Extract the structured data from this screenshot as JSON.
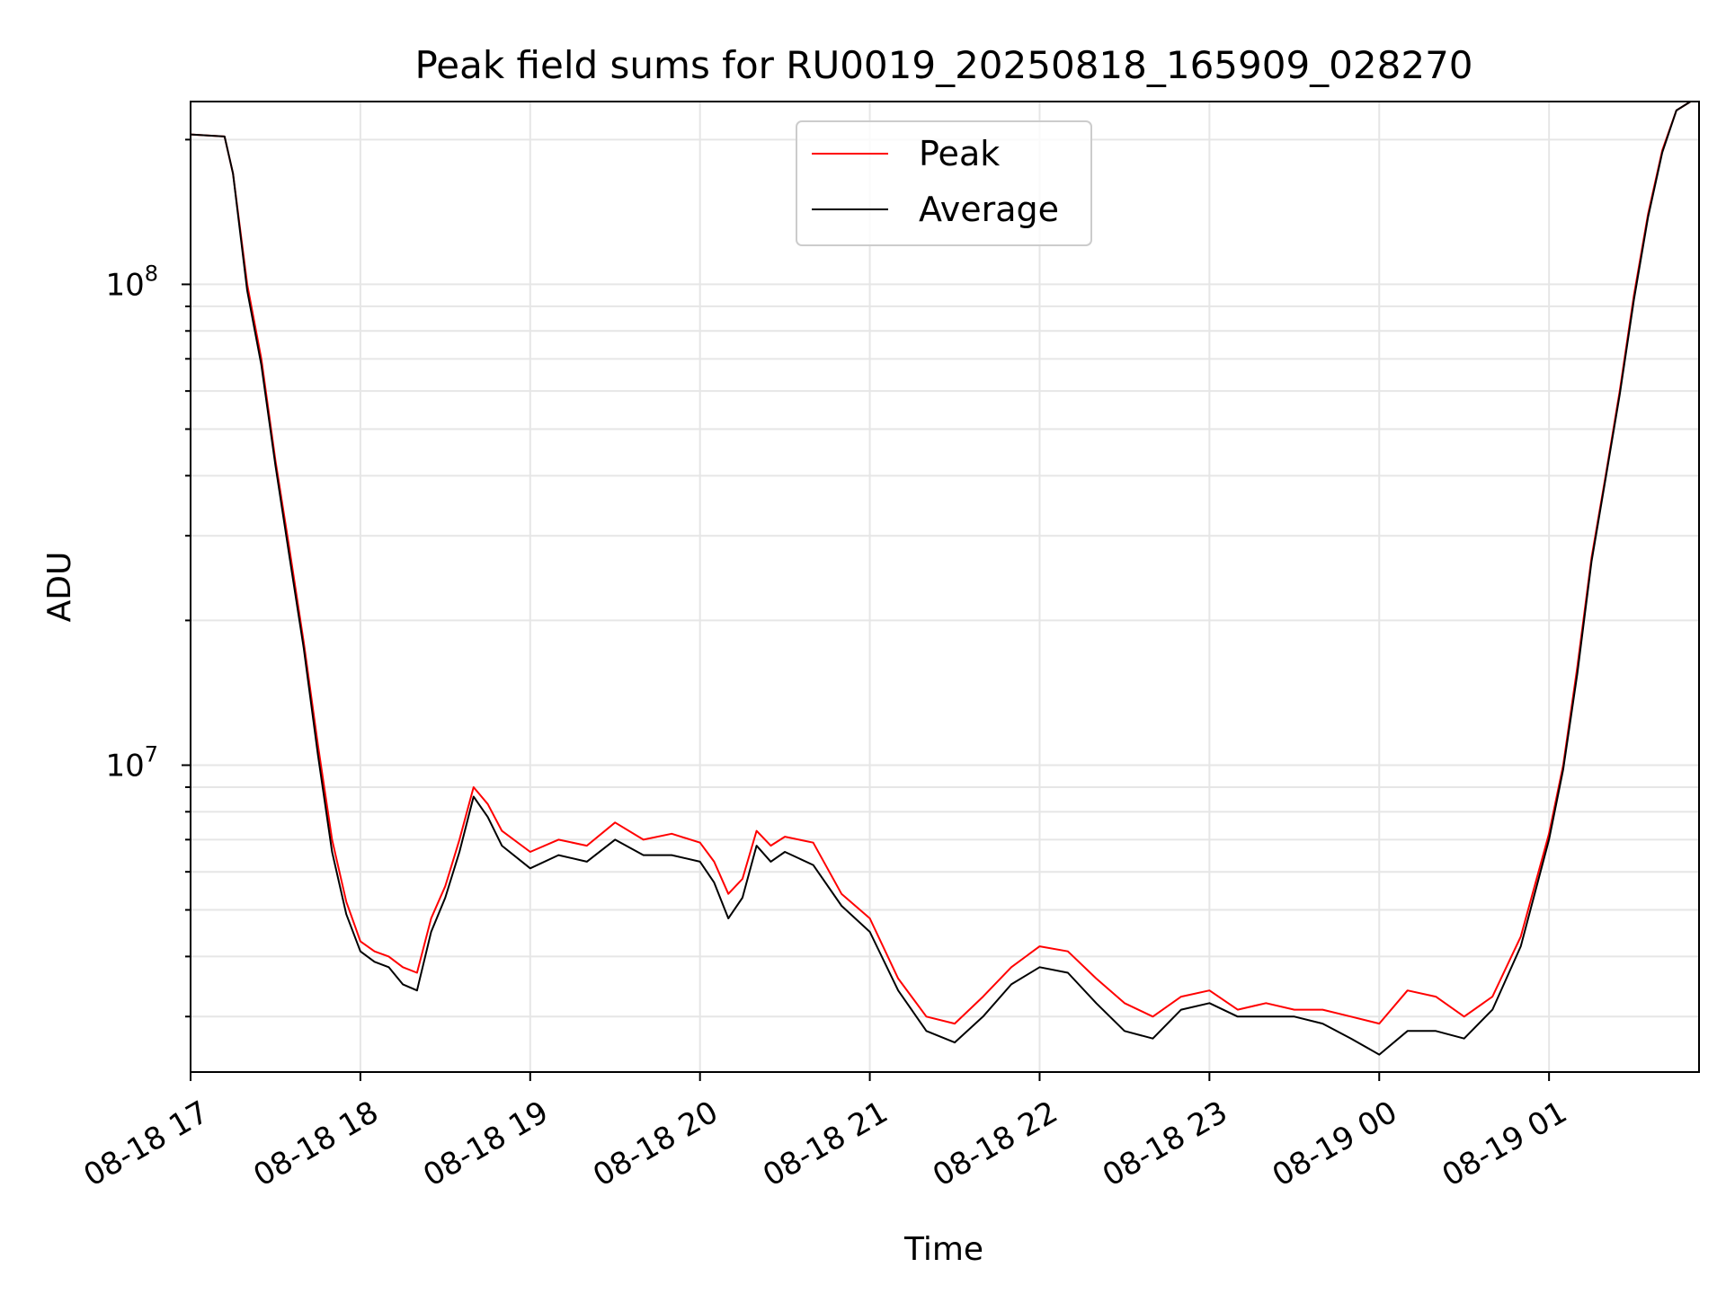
{
  "chart_data": {
    "type": "line",
    "title": "Peak field sums for RU0019_20250818_165909_028270",
    "xlabel": "Time",
    "ylabel": "ADU",
    "yscale": "log",
    "ylim": [
      2300000,
      240000000
    ],
    "xlim": [
      "2025-08-18 17:00",
      "2025-08-19 01:53"
    ],
    "x_ticks": [
      "08-18 17",
      "08-18 18",
      "08-18 19",
      "08-18 20",
      "08-18 21",
      "08-18 22",
      "08-18 23",
      "08-19 00",
      "08-19 01"
    ],
    "y_ticks": [
      {
        "base": "10",
        "exp": "7"
      },
      {
        "base": "10",
        "exp": "8"
      }
    ],
    "grid": true,
    "legend_position": "top-center",
    "x": [
      "2025-08-18 17:00",
      "2025-08-18 17:12",
      "2025-08-18 17:15",
      "2025-08-18 17:20",
      "2025-08-18 17:25",
      "2025-08-18 17:30",
      "2025-08-18 17:35",
      "2025-08-18 17:40",
      "2025-08-18 17:45",
      "2025-08-18 17:50",
      "2025-08-18 17:55",
      "2025-08-18 18:00",
      "2025-08-18 18:05",
      "2025-08-18 18:10",
      "2025-08-18 18:15",
      "2025-08-18 18:20",
      "2025-08-18 18:25",
      "2025-08-18 18:30",
      "2025-08-18 18:35",
      "2025-08-18 18:40",
      "2025-08-18 18:45",
      "2025-08-18 18:50",
      "2025-08-18 19:00",
      "2025-08-18 19:10",
      "2025-08-18 19:20",
      "2025-08-18 19:30",
      "2025-08-18 19:40",
      "2025-08-18 19:50",
      "2025-08-18 20:00",
      "2025-08-18 20:05",
      "2025-08-18 20:10",
      "2025-08-18 20:15",
      "2025-08-18 20:20",
      "2025-08-18 20:25",
      "2025-08-18 20:30",
      "2025-08-18 20:40",
      "2025-08-18 20:50",
      "2025-08-18 21:00",
      "2025-08-18 21:10",
      "2025-08-18 21:20",
      "2025-08-18 21:30",
      "2025-08-18 21:40",
      "2025-08-18 21:50",
      "2025-08-18 22:00",
      "2025-08-18 22:10",
      "2025-08-18 22:20",
      "2025-08-18 22:30",
      "2025-08-18 22:40",
      "2025-08-18 22:50",
      "2025-08-18 23:00",
      "2025-08-18 23:10",
      "2025-08-18 23:20",
      "2025-08-18 23:30",
      "2025-08-18 23:40",
      "2025-08-18 23:50",
      "2025-08-19 00:00",
      "2025-08-19 00:10",
      "2025-08-19 00:20",
      "2025-08-19 00:30",
      "2025-08-19 00:40",
      "2025-08-19 00:50",
      "2025-08-19 01:00",
      "2025-08-19 01:05",
      "2025-08-19 01:10",
      "2025-08-19 01:15",
      "2025-08-19 01:20",
      "2025-08-19 01:25",
      "2025-08-19 01:30",
      "2025-08-19 01:35",
      "2025-08-19 01:40",
      "2025-08-19 01:45",
      "2025-08-19 01:50",
      "2025-08-19 01:53"
    ],
    "series": [
      {
        "name": "Peak",
        "color": "#ff0000",
        "values": [
          205000000,
          203000000,
          170000000,
          100000000,
          70000000,
          43000000,
          28000000,
          18000000,
          11000000,
          7000000,
          5200000,
          4300000,
          4100000,
          4000000,
          3800000,
          3700000,
          4800000,
          5600000,
          7000000,
          9000000,
          8300000,
          7300000,
          6600000,
          7000000,
          6800000,
          7600000,
          7000000,
          7200000,
          6900000,
          6300000,
          5400000,
          5800000,
          7300000,
          6800000,
          7100000,
          6900000,
          5400000,
          4800000,
          3600000,
          3000000,
          2900000,
          3300000,
          3800000,
          4200000,
          4100000,
          3600000,
          3200000,
          3000000,
          3300000,
          3400000,
          3100000,
          3200000,
          3100000,
          3100000,
          3000000,
          2900000,
          3400000,
          3300000,
          3000000,
          3300000,
          4400000,
          7200000,
          10000000,
          16000000,
          27000000,
          40000000,
          60000000,
          95000000,
          140000000,
          190000000,
          230000000,
          240000000,
          240000000
        ]
      },
      {
        "name": "Average",
        "color": "#000000",
        "values": [
          205000000,
          203000000,
          170000000,
          97000000,
          68000000,
          42000000,
          27000000,
          17500000,
          10500000,
          6600000,
          4900000,
          4100000,
          3900000,
          3800000,
          3500000,
          3400000,
          4500000,
          5300000,
          6600000,
          8600000,
          7800000,
          6800000,
          6100000,
          6500000,
          6300000,
          7000000,
          6500000,
          6500000,
          6300000,
          5700000,
          4800000,
          5300000,
          6800000,
          6300000,
          6600000,
          6200000,
          5100000,
          4500000,
          3400000,
          2800000,
          2650000,
          3000000,
          3500000,
          3800000,
          3700000,
          3200000,
          2800000,
          2700000,
          3100000,
          3200000,
          3000000,
          3000000,
          3000000,
          2900000,
          2700000,
          2500000,
          2800000,
          2800000,
          2700000,
          3100000,
          4200000,
          7000000,
          9800000,
          15500000,
          26500000,
          39500000,
          59000000,
          93000000,
          138000000,
          188000000,
          230000000,
          240000000,
          240000000
        ]
      }
    ]
  }
}
